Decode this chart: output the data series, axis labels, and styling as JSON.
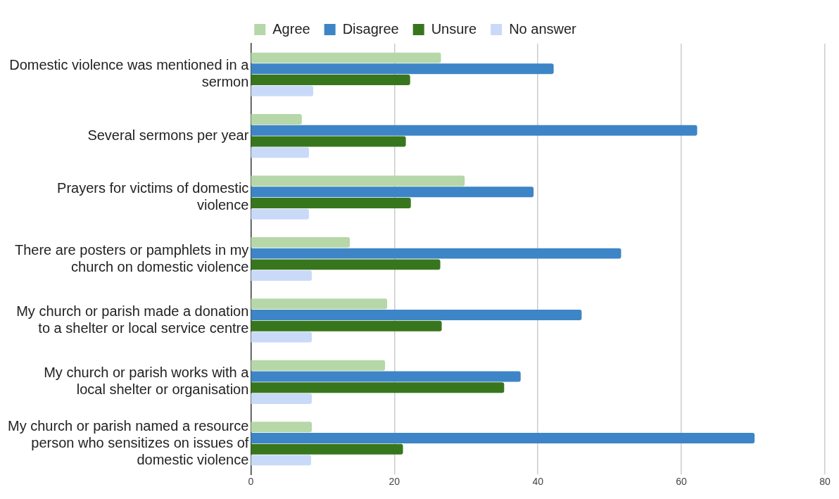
{
  "chart_data": {
    "type": "bar",
    "orientation": "horizontal",
    "categories": [
      "Domestic violence was mentioned in a sermon",
      "Several sermons per year",
      "Prayers for victims of domestic violence",
      "There are posters or pamphlets in my church on domestic violence",
      "My church or parish made a donation to a shelter or local service centre",
      "My church or parish works with a local shelter or organisation",
      "My church or parish named a resource person who sensitizes on issues of domestic violence"
    ],
    "series": [
      {
        "name": "Agree",
        "color": "#b6d7a8",
        "values": [
          26.5,
          7.1,
          29.8,
          13.8,
          19,
          18.7,
          8.5
        ]
      },
      {
        "name": "Disagree",
        "color": "#3d85c6",
        "values": [
          42.2,
          62.2,
          39.4,
          51.6,
          46.1,
          37.6,
          70.2
        ]
      },
      {
        "name": "Unsure",
        "color": "#38761d",
        "values": [
          22.2,
          21.6,
          22.3,
          26.4,
          26.6,
          35.3,
          21.2
        ]
      },
      {
        "name": "No answer",
        "color": "#c9daf8",
        "values": [
          8.7,
          8.1,
          8.1,
          8.5,
          8.5,
          8.5,
          8.4
        ]
      }
    ],
    "xlim": [
      0,
      80
    ],
    "xticks": [
      0,
      20,
      40,
      60,
      80
    ],
    "grid": "x",
    "legend": "top"
  }
}
